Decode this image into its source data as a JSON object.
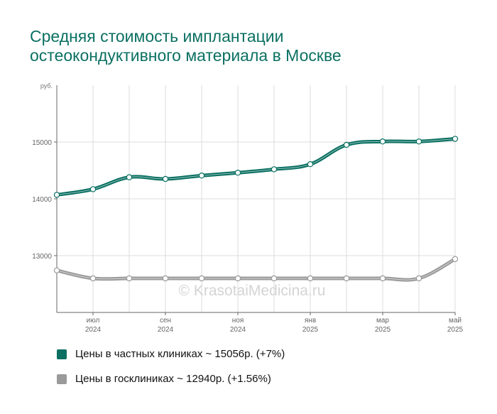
{
  "title_lines": [
    "Средняя стоимость имплантации",
    "остеокондуктивного материала в Москве"
  ],
  "watermark": "© KrasotaiMedicina.ru",
  "colors": {
    "title": "#0b7062",
    "private": "#0b7062",
    "public": "#9a9a9a",
    "grid": "#dcdcdc",
    "axis": "#666666"
  },
  "chart_data": {
    "type": "line",
    "y_unit_label": "руб.",
    "ylim": [
      12000,
      16000
    ],
    "y_ticks": [
      13000,
      14000,
      15000
    ],
    "x_ticks": [
      {
        "month": "июл",
        "year": "2024",
        "x": 1
      },
      {
        "month": "сен",
        "year": "2024",
        "x": 3
      },
      {
        "month": "ноя",
        "year": "2024",
        "x": 5
      },
      {
        "month": "янв",
        "year": "2025",
        "x": 7
      },
      {
        "month": "мар",
        "year": "2025",
        "x": 9
      },
      {
        "month": "май",
        "year": "2025",
        "x": 11
      }
    ],
    "grid": true,
    "legend_position": "bottom",
    "series": [
      {
        "key": "private",
        "legend": "Цены в частных клиниках ~ 15056р. (+7%)",
        "x": [
          0,
          1,
          2,
          3,
          4,
          5,
          6,
          7,
          8,
          9,
          10,
          11
        ],
        "values": [
          14070,
          14170,
          14380,
          14350,
          14410,
          14460,
          14520,
          14610,
          14950,
          15010,
          15010,
          15056
        ]
      },
      {
        "key": "public",
        "legend": "Цены в госклиниках ~ 12940р. (+1.56%)",
        "x": [
          0,
          1,
          2,
          3,
          4,
          5,
          6,
          7,
          8,
          9,
          10,
          11
        ],
        "values": [
          12740,
          12600,
          12600,
          12600,
          12600,
          12600,
          12600,
          12600,
          12600,
          12600,
          12600,
          12940
        ]
      }
    ]
  }
}
